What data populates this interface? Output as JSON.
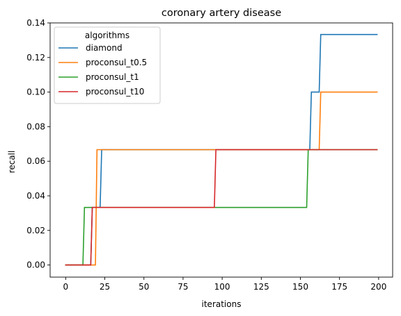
{
  "chart_data": {
    "type": "line",
    "title": "coronary artery disease",
    "xlabel": "iterations",
    "ylabel": "recall",
    "xlim": [
      -9.95,
      208.95
    ],
    "ylim": [
      -0.007,
      0.14
    ],
    "xticks": [
      0,
      25,
      50,
      75,
      100,
      125,
      150,
      175,
      200
    ],
    "xtick_labels": [
      "0",
      "25",
      "50",
      "75",
      "100",
      "125",
      "150",
      "175",
      "200"
    ],
    "yticks": [
      0.0,
      0.02,
      0.04,
      0.06,
      0.08,
      0.1,
      0.12,
      0.14
    ],
    "ytick_labels": [
      "0.00",
      "0.02",
      "0.04",
      "0.06",
      "0.08",
      "0.10",
      "0.12",
      "0.14"
    ],
    "grid": false,
    "legend": {
      "title": "algorithms",
      "placement": "upper-left"
    },
    "series": [
      {
        "name": "diamond",
        "color": "#1f77b4",
        "x": [
          0,
          16,
          17,
          22,
          23,
          156,
          157,
          162,
          163,
          199
        ],
        "y": [
          0.0,
          0.0,
          0.0333,
          0.0333,
          0.0667,
          0.0667,
          0.1,
          0.1,
          0.1333,
          0.1333
        ]
      },
      {
        "name": "proconsul_t0.5",
        "color": "#ff7f0e",
        "x": [
          0,
          19,
          20,
          162,
          163,
          199
        ],
        "y": [
          0.0,
          0.0,
          0.0667,
          0.0667,
          0.1,
          0.1
        ]
      },
      {
        "name": "proconsul_t1",
        "color": "#2ca02c",
        "x": [
          0,
          11,
          12,
          154,
          155,
          199
        ],
        "y": [
          0.0,
          0.0,
          0.0333,
          0.0333,
          0.0667,
          0.0667
        ]
      },
      {
        "name": "proconsul_t10",
        "color": "#d62728",
        "x": [
          0,
          16,
          17,
          95,
          96,
          199
        ],
        "y": [
          0.0,
          0.0,
          0.0333,
          0.0333,
          0.0667,
          0.0667
        ]
      }
    ]
  }
}
